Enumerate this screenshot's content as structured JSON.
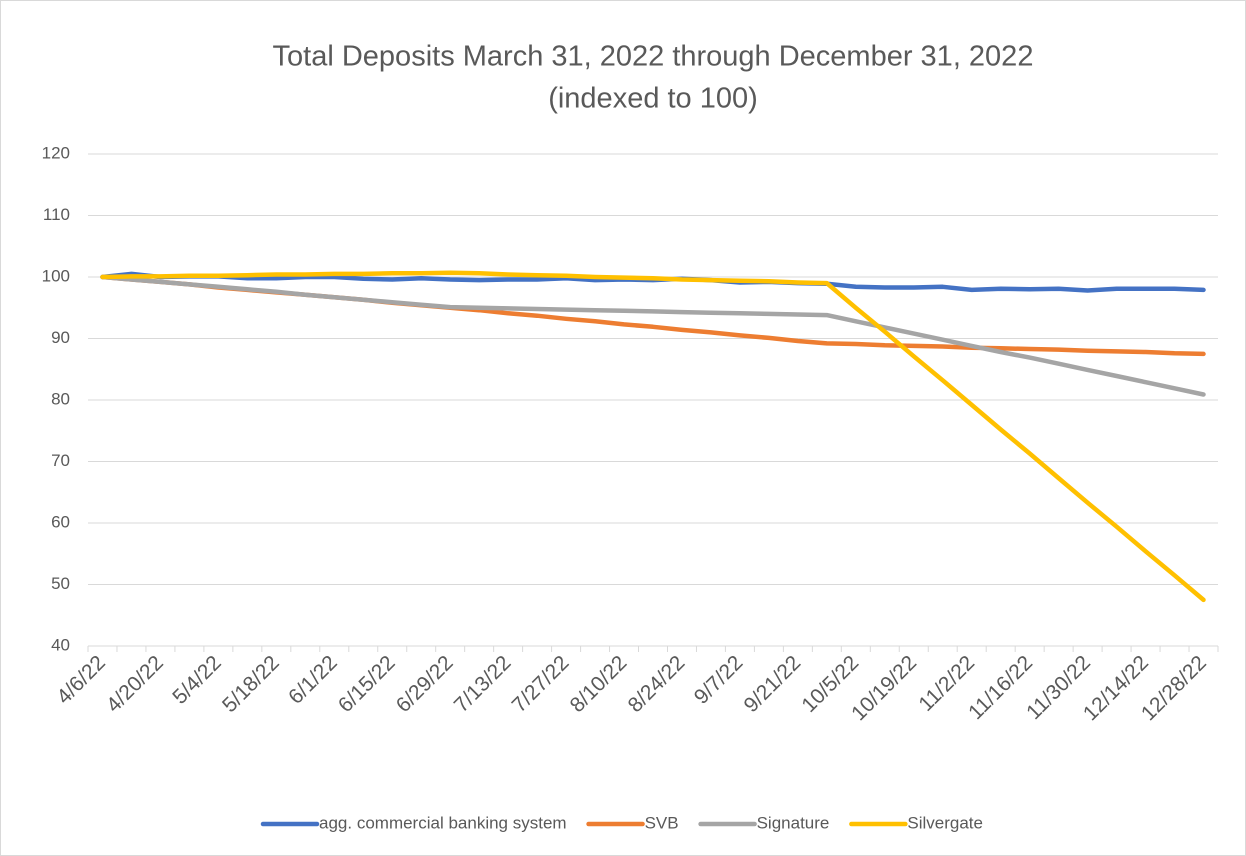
{
  "chart_data": {
    "type": "line",
    "title": "Total Deposits March 31, 2022 through December 31, 2022",
    "subtitle": "(indexed to 100)",
    "categories": [
      "4/6/22",
      null,
      "4/20/22",
      null,
      "5/4/22",
      null,
      "5/18/22",
      null,
      "6/1/22",
      null,
      "6/15/22",
      null,
      "6/29/22",
      null,
      "7/13/22",
      null,
      "7/27/22",
      null,
      "8/10/22",
      null,
      "8/24/22",
      null,
      "9/7/22",
      null,
      "9/21/22",
      null,
      "10/5/22",
      null,
      "10/19/22",
      null,
      "11/2/22",
      null,
      "11/16/22",
      null,
      "11/30/22",
      null,
      "12/14/22",
      null,
      "12/28/22"
    ],
    "series": [
      {
        "name": "agg. commercial banking system",
        "color": "#4472c4",
        "values": [
          100,
          100.5,
          100,
          100.1,
          100.1,
          99.8,
          99.8,
          100,
          100,
          99.7,
          99.6,
          99.8,
          99.6,
          99.5,
          99.6,
          99.6,
          99.8,
          99.5,
          99.6,
          99.5,
          99.7,
          99.5,
          99.1,
          99.2,
          99.0,
          98.9,
          98.4,
          98.3,
          98.3,
          98.4,
          97.9,
          98.1,
          98.0,
          98.1,
          97.8,
          98.1,
          98.1,
          98.1,
          97.9
        ]
      },
      {
        "name": "SVB",
        "color": "#ed7d31",
        "values": [
          100,
          99.6,
          99.2,
          98.8,
          98.3,
          97.9,
          97.5,
          97.1,
          96.7,
          96.3,
          95.8,
          95.4,
          95.0,
          94.6,
          94.1,
          93.7,
          93.2,
          92.8,
          92.3,
          91.9,
          91.4,
          91.0,
          90.5,
          90.1,
          89.6,
          89.2,
          89.1,
          88.9,
          88.8,
          88.7,
          88.5,
          88.4,
          88.3,
          88.2,
          88.0,
          87.9,
          87.8,
          87.6,
          87.5
        ]
      },
      {
        "name": "Signature",
        "color": "#a5a5a5",
        "values": [
          100,
          99.6,
          99.2,
          98.8,
          98.4,
          98.0,
          97.6,
          97.1,
          96.7,
          96.3,
          95.9,
          95.5,
          95.1,
          95.0,
          94.9,
          94.8,
          94.7,
          94.6,
          94.5,
          94.4,
          94.3,
          94.2,
          94.1,
          94.0,
          93.9,
          93.8,
          92.8,
          91.8,
          90.8,
          89.8,
          88.8,
          87.8,
          86.9,
          85.9,
          84.9,
          83.9,
          82.9,
          81.9,
          80.9
        ]
      },
      {
        "name": "Silvergate",
        "color": "#ffc000",
        "values": [
          100,
          100.1,
          100.1,
          100.2,
          100.2,
          100.3,
          100.4,
          100.4,
          100.5,
          100.5,
          100.6,
          100.6,
          100.7,
          100.6,
          100.4,
          100.3,
          100.2,
          100.0,
          99.9,
          99.8,
          99.6,
          99.5,
          99.4,
          99.3,
          99.1,
          99.0,
          95.0,
          91.1,
          87.1,
          83.2,
          79.2,
          75.2,
          71.3,
          67.3,
          63.3,
          59.4,
          55.4,
          51.5,
          47.5
        ]
      }
    ],
    "ylim": [
      40,
      120
    ],
    "yticks": [
      40,
      50,
      60,
      70,
      80,
      90,
      100,
      110,
      120
    ],
    "grid": true,
    "legend": "bottom"
  }
}
